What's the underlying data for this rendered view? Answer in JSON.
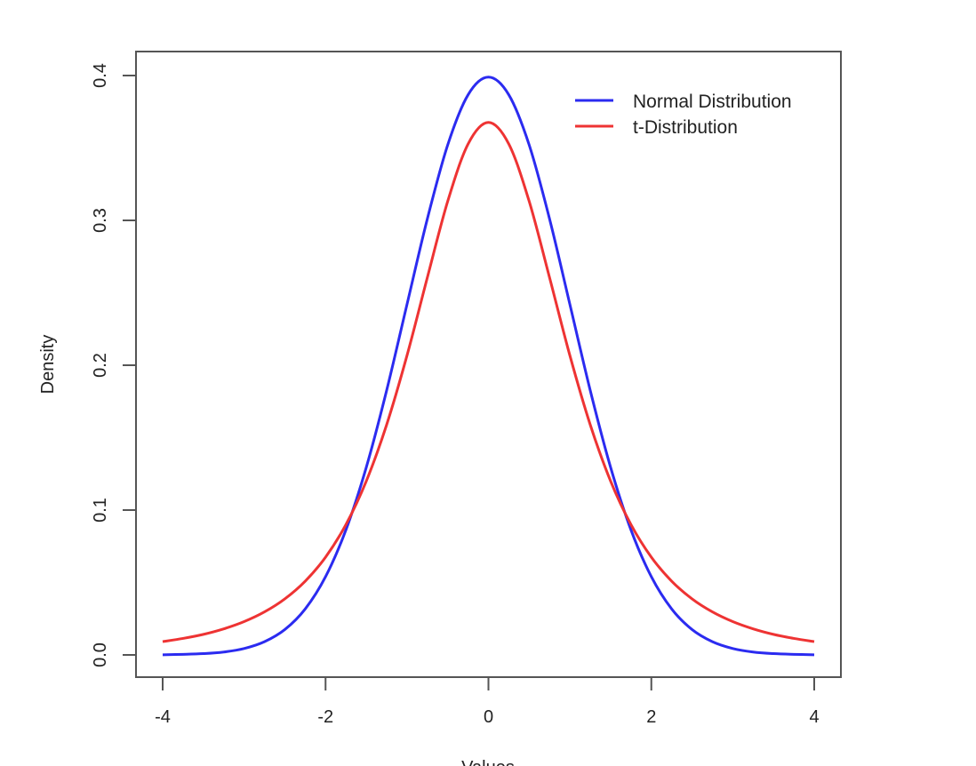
{
  "chart_data": {
    "type": "line",
    "title": "",
    "xlabel": "Values",
    "ylabel": "Density",
    "xlim": [
      -4,
      4
    ],
    "ylim": [
      0,
      0.4
    ],
    "xticks": [
      -4,
      -2,
      0,
      2,
      4
    ],
    "xtick_labels": [
      "-4",
      "-2",
      "0",
      "2",
      "4"
    ],
    "yticks": [
      0,
      0.1,
      0.2,
      0.3,
      0.4
    ],
    "ytick_labels": [
      "0.0",
      "0.1",
      "0.2",
      "0.3",
      "0.4"
    ],
    "grid": false,
    "legend_position": "top-right",
    "x": [
      -4,
      -3.75,
      -3.5,
      -3.25,
      -3,
      -2.75,
      -2.5,
      -2.25,
      -2,
      -1.75,
      -1.5,
      -1.25,
      -1,
      -0.75,
      -0.5,
      -0.25,
      0,
      0.25,
      0.5,
      0.75,
      1,
      1.25,
      1.5,
      1.75,
      2,
      2.25,
      2.5,
      2.75,
      3,
      3.25,
      3.5,
      3.75,
      4
    ],
    "series": [
      {
        "name": "Normal Distribution",
        "color": "#2b2bf0",
        "values": [
          0.0001,
          0.0004,
          0.0009,
          0.002,
          0.0044,
          0.0091,
          0.0175,
          0.0317,
          0.054,
          0.0863,
          0.1295,
          0.1826,
          0.242,
          0.3011,
          0.3521,
          0.3867,
          0.3989,
          0.3867,
          0.3521,
          0.3011,
          0.242,
          0.1826,
          0.1295,
          0.0863,
          0.054,
          0.0317,
          0.0175,
          0.0091,
          0.0044,
          0.002,
          0.0009,
          0.0004,
          0.0001
        ]
      },
      {
        "name": "t-Distribution",
        "color": "#ee3333",
        "values": [
          0.0092,
          0.0114,
          0.0142,
          0.018,
          0.023,
          0.0297,
          0.0387,
          0.0509,
          0.0675,
          0.09,
          0.12,
          0.1589,
          0.2067,
          0.2606,
          0.3132,
          0.3527,
          0.3676,
          0.3527,
          0.3132,
          0.2606,
          0.2067,
          0.1589,
          0.12,
          0.09,
          0.0675,
          0.0509,
          0.0387,
          0.0297,
          0.023,
          0.018,
          0.0142,
          0.0114,
          0.0092
        ]
      }
    ]
  }
}
